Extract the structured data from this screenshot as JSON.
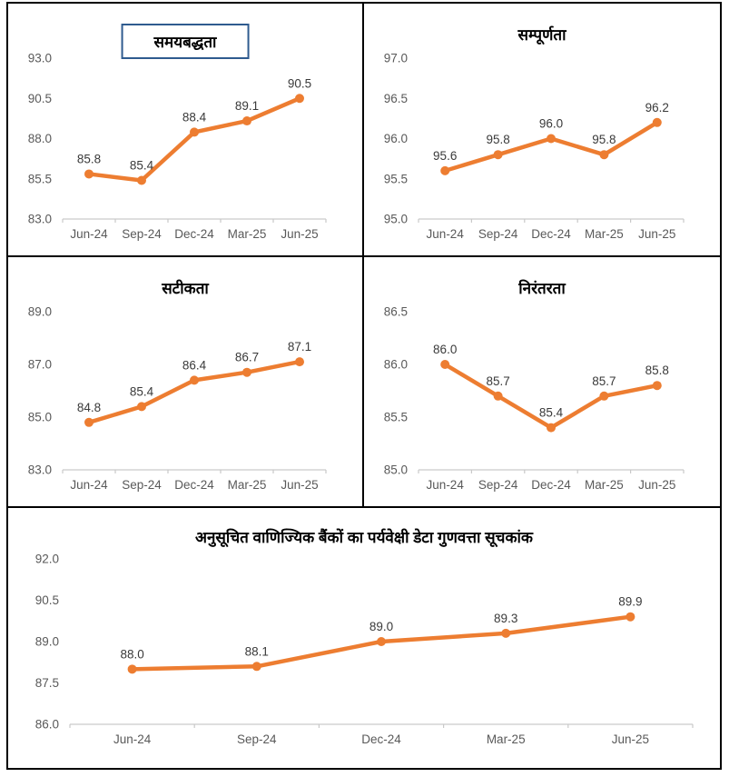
{
  "style": {
    "accent_color": "#ED7D31",
    "title_box_border_color": "#2F5B8F",
    "axis_label_color": "#595959",
    "data_label_color": "#3A3A3A",
    "axis_line_color": "#C9C9C9",
    "panel_border_color": "#000000"
  },
  "chart_data": [
    {
      "id": "timeliness",
      "type": "line",
      "title": "समयबद्धता",
      "title_boxed": true,
      "categories": [
        "Jun-24",
        "Sep-24",
        "Dec-24",
        "Mar-25",
        "Jun-25"
      ],
      "values": [
        85.8,
        85.4,
        88.4,
        89.1,
        90.5
      ],
      "yticks": [
        83.0,
        85.5,
        88.0,
        90.5,
        93.0
      ],
      "ylim": [
        83.0,
        93.0
      ],
      "xlabel": "",
      "ylabel": "",
      "grid": false,
      "legend": "none",
      "data_labels": true
    },
    {
      "id": "completeness",
      "type": "line",
      "title": "सम्पूर्णता",
      "title_boxed": false,
      "categories": [
        "Jun-24",
        "Sep-24",
        "Dec-24",
        "Mar-25",
        "Jun-25"
      ],
      "values": [
        95.6,
        95.8,
        96.0,
        95.8,
        96.2
      ],
      "yticks": [
        95.0,
        95.5,
        96.0,
        96.5,
        97.0
      ],
      "ylim": [
        95.0,
        97.0
      ],
      "xlabel": "",
      "ylabel": "",
      "grid": false,
      "legend": "none",
      "data_labels": true
    },
    {
      "id": "accuracy",
      "type": "line",
      "title": "सटीकता",
      "title_boxed": false,
      "categories": [
        "Jun-24",
        "Sep-24",
        "Dec-24",
        "Mar-25",
        "Jun-25"
      ],
      "values": [
        84.8,
        85.4,
        86.4,
        86.7,
        87.1
      ],
      "yticks": [
        83.0,
        85.0,
        87.0,
        89.0
      ],
      "ylim": [
        83.0,
        89.0
      ],
      "xlabel": "",
      "ylabel": "",
      "grid": false,
      "legend": "none",
      "data_labels": true
    },
    {
      "id": "continuity",
      "type": "line",
      "title": "निरंतरता",
      "title_boxed": false,
      "categories": [
        "Jun-24",
        "Sep-24",
        "Dec-24",
        "Mar-25",
        "Jun-25"
      ],
      "values": [
        86.0,
        85.7,
        85.4,
        85.7,
        85.8
      ],
      "yticks": [
        85.0,
        85.5,
        86.0,
        86.5
      ],
      "ylim": [
        85.0,
        86.5
      ],
      "xlabel": "",
      "ylabel": "",
      "grid": false,
      "legend": "none",
      "data_labels": true
    },
    {
      "id": "sdqi",
      "type": "line",
      "title": "अनुसूचित वाणिज्यिक बैंकों का पर्यवेक्षी डेटा गुणवत्ता सूचकांक",
      "title_boxed": false,
      "categories": [
        "Jun-24",
        "Sep-24",
        "Dec-24",
        "Mar-25",
        "Jun-25"
      ],
      "values": [
        88.0,
        88.1,
        89.0,
        89.3,
        89.9
      ],
      "yticks": [
        86.0,
        87.5,
        89.0,
        90.5,
        92.0
      ],
      "ylim": [
        86.0,
        92.0
      ],
      "xlabel": "",
      "ylabel": "",
      "grid": false,
      "legend": "none",
      "data_labels": true
    }
  ]
}
